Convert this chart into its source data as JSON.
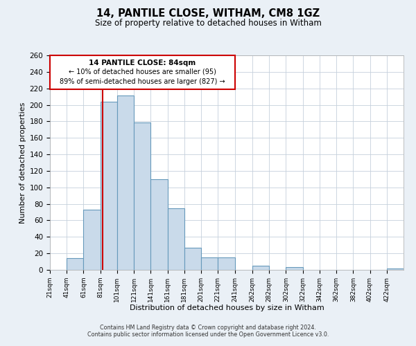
{
  "title": "14, PANTILE CLOSE, WITHAM, CM8 1GZ",
  "subtitle": "Size of property relative to detached houses in Witham",
  "xlabel": "Distribution of detached houses by size in Witham",
  "ylabel": "Number of detached properties",
  "bar_edges": [
    21,
    41,
    61,
    81,
    101,
    121,
    141,
    161,
    181,
    201,
    221,
    241,
    262,
    282,
    302,
    322,
    342,
    362,
    382,
    402,
    422
  ],
  "bar_heights": [
    0,
    14,
    73,
    204,
    211,
    179,
    110,
    75,
    27,
    15,
    15,
    0,
    5,
    0,
    3,
    0,
    0,
    0,
    0,
    0,
    2
  ],
  "bar_color": "#c9daea",
  "bar_edge_color": "#6699bb",
  "vline_x": 84,
  "vline_color": "#cc0000",
  "ylim": [
    0,
    260
  ],
  "yticks": [
    0,
    20,
    40,
    60,
    80,
    100,
    120,
    140,
    160,
    180,
    200,
    220,
    240,
    260
  ],
  "xtick_labels": [
    "21sqm",
    "41sqm",
    "61sqm",
    "81sqm",
    "101sqm",
    "121sqm",
    "141sqm",
    "161sqm",
    "181sqm",
    "201sqm",
    "221sqm",
    "241sqm",
    "262sqm",
    "282sqm",
    "302sqm",
    "322sqm",
    "342sqm",
    "362sqm",
    "382sqm",
    "402sqm",
    "422sqm"
  ],
  "annotation_title": "14 PANTILE CLOSE: 84sqm",
  "annotation_line1": "← 10% of detached houses are smaller (95)",
  "annotation_line2": "89% of semi-detached houses are larger (827) →",
  "footer_line1": "Contains HM Land Registry data © Crown copyright and database right 2024.",
  "footer_line2": "Contains public sector information licensed under the Open Government Licence v3.0.",
  "background_color": "#eaf0f6",
  "plot_bg_color": "#ffffff",
  "grid_color": "#c5d0dc"
}
